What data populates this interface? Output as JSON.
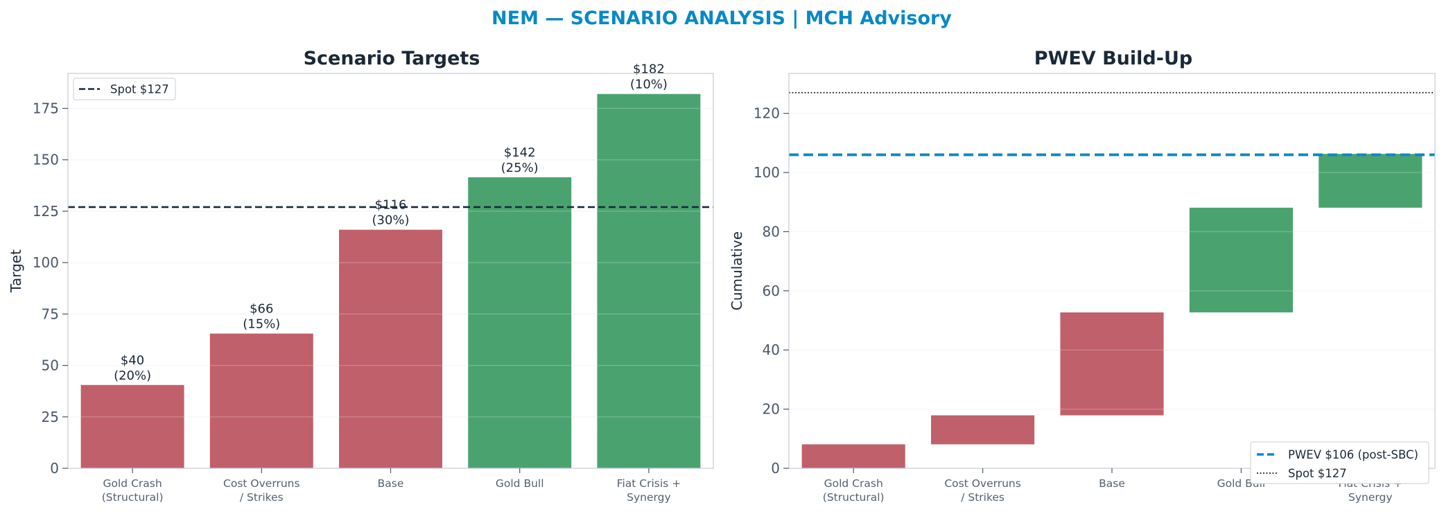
{
  "suptitle": "NEM — SCENARIO ANALYSIS | MCH Advisory",
  "colors": {
    "suptitle": "#0889c5",
    "bear": "#c0606b",
    "bull": "#4aa36f",
    "spot_line_left": "#1b2a3d",
    "pwev_line": "#0889c5",
    "spot_line_right": "#222222",
    "axis": "#c8ced6",
    "grid": "#f1f3f5"
  },
  "chart_data": [
    {
      "type": "bar",
      "title": "Scenario Targets",
      "xlabel": "",
      "ylabel": "Target",
      "categories": [
        "Gold Crash\n(Structural)",
        "Cost Overruns\n/ Strikes",
        "Base",
        "Gold Bull",
        "Fiat Crisis +\nSynergy"
      ],
      "values": [
        40.5,
        65.5,
        116,
        141.5,
        182
      ],
      "probabilities": [
        20,
        15,
        30,
        25,
        10
      ],
      "value_labels": [
        "$40\n(20%)",
        "$66\n(15%)",
        "$116\n(30%)",
        "$142\n(25%)",
        "$182\n(10%)"
      ],
      "bar_tone": [
        "bear",
        "bear",
        "bear",
        "bull",
        "bull"
      ],
      "ylim": [
        0,
        192
      ],
      "yticks": [
        0,
        25,
        50,
        75,
        100,
        125,
        150,
        175
      ],
      "grid": true,
      "spot": 127,
      "legend": {
        "position": "top-left",
        "entries": [
          "Spot $127"
        ]
      }
    },
    {
      "type": "waterfall",
      "title": "PWEV Build-Up",
      "xlabel": "",
      "ylabel": "Cumulative",
      "categories": [
        "Gold Crash\n(Structural)",
        "Cost Overruns\n/ Strikes",
        "Base",
        "Gold Bull",
        "Fiat Crisis +\nSynergy"
      ],
      "contributions": [
        8.1,
        9.8,
        34.8,
        35.4,
        18.2
      ],
      "bar_tone": [
        "bear",
        "bear",
        "bear",
        "bull",
        "bull"
      ],
      "ylim": [
        0,
        133.5
      ],
      "yticks": [
        0,
        20,
        40,
        60,
        80,
        100,
        120
      ],
      "grid": true,
      "pwev": 106,
      "spot": 127,
      "legend": {
        "position": "bottom-right",
        "entries": [
          "PWEV $106 (post-SBC)",
          "Spot $127"
        ]
      }
    }
  ]
}
